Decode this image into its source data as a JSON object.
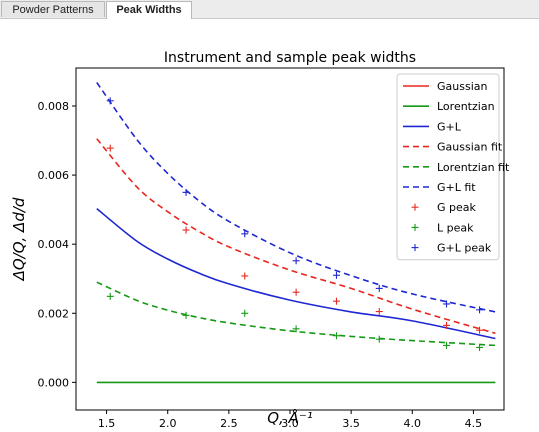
{
  "tabs": [
    {
      "label": "Powder Patterns",
      "active": false
    },
    {
      "label": "Peak Widths",
      "active": true
    }
  ],
  "chart_data": {
    "type": "line",
    "title": "Instrument and sample peak widths",
    "xlabel": "Q, Å⁻¹",
    "ylabel": "ΔQ/Q, Δd/d",
    "xlim": [
      1.25,
      4.75
    ],
    "ylim": [
      -0.0008,
      0.0091
    ],
    "xticks": [
      1.5,
      2.0,
      2.5,
      3.0,
      3.5,
      4.0,
      4.5
    ],
    "xtick_labels": [
      "1.5",
      "2.0",
      "2.5",
      "3.0",
      "3.5",
      "4.0",
      "4.5"
    ],
    "yticks": [
      0.0,
      0.002,
      0.004,
      0.006,
      0.008
    ],
    "ytick_labels": [
      "0.000",
      "0.002",
      "0.004",
      "0.006",
      "0.008"
    ],
    "grid": false,
    "legend_position": "top-right",
    "colors": {
      "red": "#e8281e",
      "green": "#159a15",
      "blue": "#1e28d2"
    },
    "series": [
      {
        "name": "Gaussian",
        "style": "solid",
        "color": "red",
        "x": [
          1.42,
          2.0,
          2.5,
          3.0,
          3.5,
          4.0,
          4.68
        ],
        "y": [
          0.00705,
          0.00497,
          0.00396,
          0.0033,
          0.00283,
          0.00248,
          0.00212
        ],
        "visible": false
      },
      {
        "name": "Lorentzian",
        "style": "solid",
        "color": "green",
        "x": [
          1.42,
          4.68
        ],
        "y": [
          0.0,
          0.0
        ]
      },
      {
        "name": "G+L",
        "style": "solid",
        "color": "blue",
        "x": [
          1.42,
          1.75,
          2.0,
          2.25,
          2.5,
          3.0,
          3.5,
          4.0,
          4.68
        ],
        "y": [
          0.00503,
          0.00408,
          0.00357,
          0.00317,
          0.00285,
          0.00238,
          0.00204,
          0.00178,
          0.00127
        ]
      },
      {
        "name": "Gaussian fit",
        "style": "dashed",
        "color": "red",
        "x": [
          1.42,
          1.75,
          2.0,
          2.25,
          2.5,
          3.0,
          3.5,
          4.0,
          4.68
        ],
        "y": [
          0.00705,
          0.00565,
          0.00494,
          0.00438,
          0.00392,
          0.00325,
          0.00272,
          0.00212,
          0.00142
        ]
      },
      {
        "name": "Lorentzian fit",
        "style": "dashed",
        "color": "green",
        "x": [
          1.42,
          1.75,
          2.0,
          2.25,
          2.5,
          3.0,
          3.5,
          4.0,
          4.68
        ],
        "y": [
          0.0029,
          0.00237,
          0.00209,
          0.00188,
          0.00172,
          0.00149,
          0.00133,
          0.00121,
          0.00107
        ]
      },
      {
        "name": "G+L fit",
        "style": "dashed",
        "color": "blue",
        "x": [
          1.42,
          1.75,
          2.0,
          2.25,
          2.5,
          3.0,
          3.5,
          4.0,
          4.68
        ],
        "y": [
          0.00868,
          0.00702,
          0.00605,
          0.00527,
          0.00466,
          0.00375,
          0.00309,
          0.00256,
          0.00204
        ]
      }
    ],
    "scatter": [
      {
        "name": "G peak",
        "color": "red",
        "marker": "+",
        "x": [
          1.53,
          2.15,
          2.63,
          3.05,
          3.38,
          3.73,
          4.28,
          4.55
        ],
        "y": [
          0.00678,
          0.00441,
          0.00308,
          0.00261,
          0.00235,
          0.00205,
          0.00165,
          0.00151
        ]
      },
      {
        "name": "L peak",
        "color": "green",
        "marker": "+",
        "x": [
          1.53,
          2.15,
          2.63,
          3.05,
          3.38,
          3.73,
          4.28,
          4.55
        ],
        "y": [
          0.00249,
          0.00194,
          0.002,
          0.00155,
          0.00135,
          0.00125,
          0.00107,
          0.00101
        ]
      },
      {
        "name": "G+L peak",
        "color": "blue",
        "marker": "+",
        "x": [
          1.53,
          2.15,
          2.63,
          3.05,
          3.38,
          3.73,
          4.28,
          4.55
        ],
        "y": [
          0.00815,
          0.0055,
          0.0043,
          0.00352,
          0.0031,
          0.00272,
          0.00227,
          0.0021
        ]
      }
    ]
  }
}
